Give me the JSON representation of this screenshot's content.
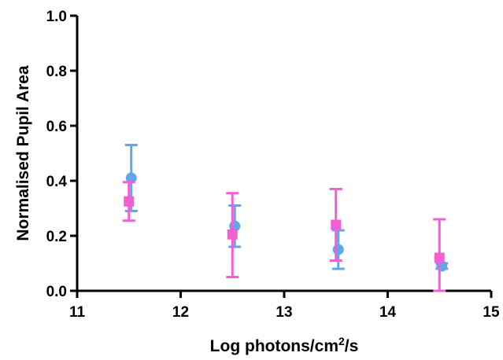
{
  "chart_data": {
    "type": "scatter",
    "title": "",
    "xlabel": "Log photons/cm",
    "xlabel_sup": "2",
    "xlabel_suffix": "/s",
    "ylabel": "Normalised Pupil Area",
    "xlim": [
      11,
      15
    ],
    "ylim": [
      0,
      1.0
    ],
    "x_ticks": [
      "11",
      "12",
      "13",
      "14",
      "15"
    ],
    "y_ticks": [
      "0.0",
      "0.2",
      "0.4",
      "0.6",
      "0.8",
      "1.0"
    ],
    "grid": false,
    "legend": "none",
    "series": [
      {
        "marker": "circle",
        "color": "#5ea7ea",
        "x": [
          11.5,
          12.5,
          13.5,
          14.5
        ],
        "y": [
          0.41,
          0.235,
          0.15,
          0.09
        ],
        "err_low": [
          0.29,
          0.16,
          0.08,
          0.08
        ],
        "err_high": [
          0.53,
          0.31,
          0.22,
          0.1
        ]
      },
      {
        "marker": "square",
        "color": "#f25fd1",
        "x": [
          11.5,
          12.5,
          13.5,
          14.5
        ],
        "y": [
          0.325,
          0.205,
          0.24,
          0.12
        ],
        "err_low": [
          0.255,
          0.05,
          0.11,
          0.0
        ],
        "err_high": [
          0.395,
          0.355,
          0.37,
          0.26
        ]
      }
    ]
  }
}
